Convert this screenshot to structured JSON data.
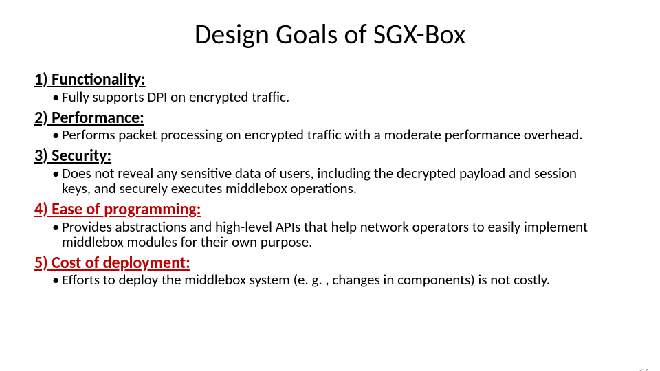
{
  "title": "Design Goals of SGX-Box",
  "goals": [
    {
      "heading": "1) Functionality:",
      "bullet": "Fully supports DPI on encrypted traffic.",
      "heading_color": "#000000"
    },
    {
      "heading": "2) Performance:",
      "bullet": "Performs packet processing on encrypted traffic with a moderate performance overhead.",
      "heading_color": "#000000"
    },
    {
      "heading": "3) Security:",
      "bullet": "Does not reveal any sensitive data of users, including the decrypted payload and session keys, and securely executes middlebox operations.",
      "heading_color": "#000000"
    },
    {
      "heading": "4) Ease of programming:",
      "bullet": "Provides abstractions and high-level APIs that help network operators to easily implement middlebox modules for their own purpose.",
      "heading_color": "#c00000"
    },
    {
      "heading": "5) Cost of deployment:",
      "bullet": "Efforts to deploy the middlebox system (e. g. , changes in components) is not costly.",
      "heading_color": "#c00000"
    }
  ],
  "page_number": "26",
  "colors": {
    "background": "#ffffff",
    "text": "#000000",
    "emphasis": "#c00000",
    "page_num": "#898989"
  },
  "typography": {
    "title_fontsize": 40,
    "heading_fontsize": 24,
    "bullet_fontsize": 21,
    "pagenum_fontsize": 14,
    "font_family": "Calibri"
  }
}
